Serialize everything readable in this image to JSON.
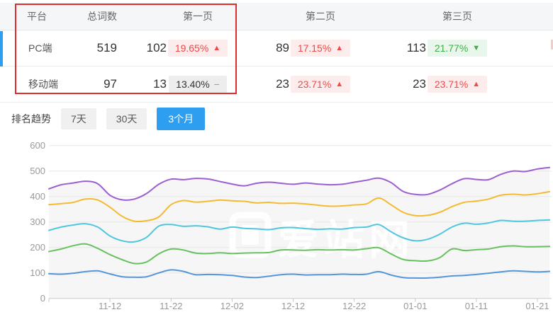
{
  "table": {
    "columns": {
      "platform": "平台",
      "total": "总词数",
      "page1": "第一页",
      "page2": "第二页",
      "page3": "第三页"
    },
    "rows": [
      {
        "platform": "PC端",
        "total": "519",
        "page1_count": "102",
        "page1_pct": "19.65%",
        "page1_dir": "up",
        "page2_count": "89",
        "page2_pct": "17.15%",
        "page2_dir": "up",
        "page3_count": "113",
        "page3_pct": "21.77%",
        "page3_dir": "down"
      },
      {
        "platform": "移动端",
        "total": "97",
        "page1_count": "13",
        "page1_pct": "13.40%",
        "page1_dir": "flat",
        "page2_count": "23",
        "page2_pct": "23.71%",
        "page2_dir": "up",
        "page3_count": "23",
        "page3_pct": "23.71%",
        "page3_dir": "up"
      }
    ]
  },
  "glyphs": {
    "up": "▲",
    "down": "▼",
    "flat": "−"
  },
  "trend": {
    "label": "排名趋势",
    "tabs": [
      {
        "label": "7天",
        "active": false
      },
      {
        "label": "30天",
        "active": false
      },
      {
        "label": "3个月",
        "active": true
      }
    ]
  },
  "watermark": "爱站网",
  "colors": {
    "accent_blue": "#2e9ef0",
    "annotation_red": "#e02c2c",
    "badge_up_text": "#f14848",
    "badge_down_text": "#3cb043"
  },
  "chart_data": {
    "type": "line",
    "title": "排名趋势 (3个月)",
    "x_start_label": "11-02",
    "x_step_days": 2,
    "x_tick_labels": [
      "11-12",
      "11-22",
      "12-02",
      "12-12",
      "12-22",
      "01-01",
      "01-11",
      "01-21"
    ],
    "x_tick_days": [
      10,
      20,
      30,
      40,
      50,
      60,
      70,
      80
    ],
    "y_ticks": [
      0,
      100,
      200,
      300,
      400,
      500,
      600
    ],
    "ylim": [
      0,
      600
    ],
    "grid": true,
    "legend_position": "none",
    "series": [
      {
        "name": "series-purple",
        "color": "#9b5fd0",
        "values": [
          430,
          446,
          453,
          460,
          450,
          405,
          387,
          390,
          412,
          448,
          468,
          466,
          471,
          469,
          459,
          449,
          442,
          452,
          456,
          452,
          448,
          453,
          449,
          446,
          448,
          456,
          464,
          472,
          455,
          420,
          408,
          408,
          425,
          450,
          470,
          467,
          466,
          487,
          500,
          498,
          508,
          514
        ]
      },
      {
        "name": "series-yellow",
        "color": "#f5bb30",
        "values": [
          368,
          372,
          377,
          390,
          386,
          358,
          322,
          303,
          305,
          320,
          368,
          384,
          378,
          381,
          386,
          383,
          381,
          375,
          377,
          373,
          374,
          371,
          366,
          362,
          363,
          367,
          371,
          394,
          368,
          338,
          325,
          326,
          338,
          360,
          377,
          382,
          390,
          405,
          409,
          406,
          411,
          419
        ]
      },
      {
        "name": "series-cyan",
        "color": "#4ec7de",
        "values": [
          267,
          280,
          288,
          293,
          280,
          245,
          226,
          222,
          240,
          284,
          290,
          283,
          285,
          281,
          272,
          280,
          275,
          273,
          270,
          277,
          278,
          274,
          271,
          273,
          272,
          278,
          280,
          290,
          262,
          238,
          226,
          232,
          252,
          280,
          295,
          291,
          296,
          306,
          303,
          303,
          306,
          308
        ]
      },
      {
        "name": "series-green",
        "color": "#68c05e",
        "values": [
          184,
          194,
          207,
          214,
          196,
          172,
          152,
          137,
          143,
          175,
          194,
          190,
          178,
          176,
          179,
          176,
          178,
          179,
          180,
          190,
          190,
          189,
          191,
          190,
          191,
          190,
          195,
          199,
          175,
          153,
          148,
          147,
          160,
          194,
          188,
          191,
          194,
          203,
          206,
          203,
          203,
          204
        ]
      },
      {
        "name": "series-blue",
        "color": "#5596d8",
        "values": [
          97,
          95,
          99,
          105,
          108,
          96,
          85,
          83,
          85,
          100,
          112,
          106,
          93,
          94,
          93,
          90,
          84,
          82,
          87,
          93,
          95,
          92,
          93,
          93,
          95,
          94,
          95,
          105,
          92,
          82,
          80,
          80,
          83,
          88,
          90,
          94,
          99,
          104,
          108,
          106,
          104,
          106
        ]
      }
    ]
  }
}
